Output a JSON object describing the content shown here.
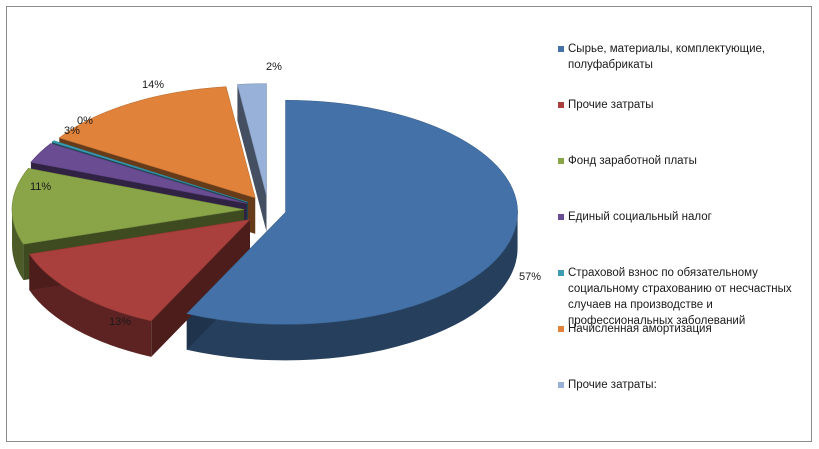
{
  "chart_data": {
    "type": "pie",
    "title": "",
    "categories": [
      "Сырье, материалы, комплектующие, полуфабрикаты",
      "Прочие затраты",
      "Фонд заработной платы",
      "Единый социальный налог",
      "Страховой взнос по обязательному социальному страхованию от несчастных случаев на производстве и профессиональных заболеваний",
      "Начисленная амортизация",
      "Прочие затраты:"
    ],
    "values": [
      57,
      13,
      11,
      3,
      0,
      14,
      2
    ],
    "labels": [
      "57%",
      "13%",
      "11%",
      "3%",
      "0%",
      "14%",
      "2%"
    ],
    "colors": [
      "#4472A8",
      "#A9403D",
      "#8AA548",
      "#6A4C93",
      "#3B9CB4",
      "#E0823A",
      "#97B1D8"
    ],
    "legend_position": "right"
  }
}
